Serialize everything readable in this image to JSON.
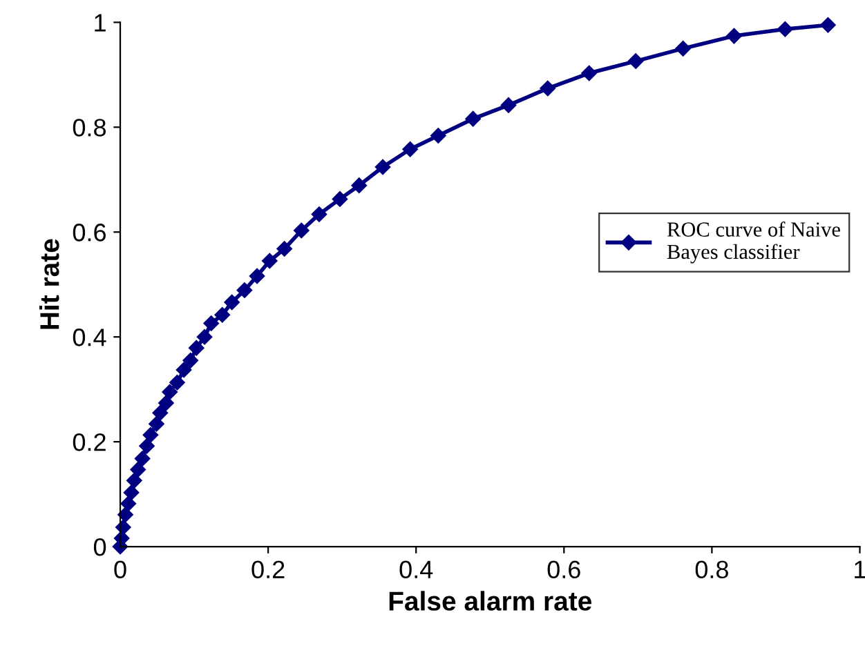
{
  "chart_data": {
    "type": "line",
    "xlabel": "False alarm rate",
    "ylabel": "Hit rate",
    "xlim": [
      0,
      1
    ],
    "ylim": [
      0,
      1
    ],
    "xticks": [
      0,
      0.2,
      0.4,
      0.6,
      0.8,
      1
    ],
    "yticks": [
      0,
      0.2,
      0.4,
      0.6,
      0.8,
      1
    ],
    "grid": false,
    "legend": "right",
    "marker": "diamond",
    "line_style": "solid",
    "series": [
      {
        "name": "ROC curve of Naive\nBayes classifier",
        "color": "#000080",
        "x": [
          0,
          0.002,
          0.004,
          0.007,
          0.011,
          0.015,
          0.019,
          0.024,
          0.03,
          0.036,
          0.041,
          0.049,
          0.054,
          0.062,
          0.067,
          0.077,
          0.086,
          0.095,
          0.103,
          0.114,
          0.123,
          0.138,
          0.151,
          0.168,
          0.185,
          0.202,
          0.222,
          0.245,
          0.269,
          0.297,
          0.323,
          0.355,
          0.392,
          0.43,
          0.477,
          0.525,
          0.578,
          0.634,
          0.697,
          0.761,
          0.83,
          0.899,
          0.957
        ],
        "values": [
          0,
          0.016,
          0.037,
          0.061,
          0.082,
          0.103,
          0.126,
          0.147,
          0.168,
          0.192,
          0.213,
          0.234,
          0.255,
          0.274,
          0.295,
          0.313,
          0.337,
          0.355,
          0.379,
          0.4,
          0.426,
          0.442,
          0.466,
          0.489,
          0.516,
          0.545,
          0.568,
          0.603,
          0.634,
          0.663,
          0.689,
          0.724,
          0.758,
          0.784,
          0.816,
          0.842,
          0.874,
          0.903,
          0.926,
          0.95,
          0.974,
          0.987,
          0.995
        ]
      }
    ]
  }
}
